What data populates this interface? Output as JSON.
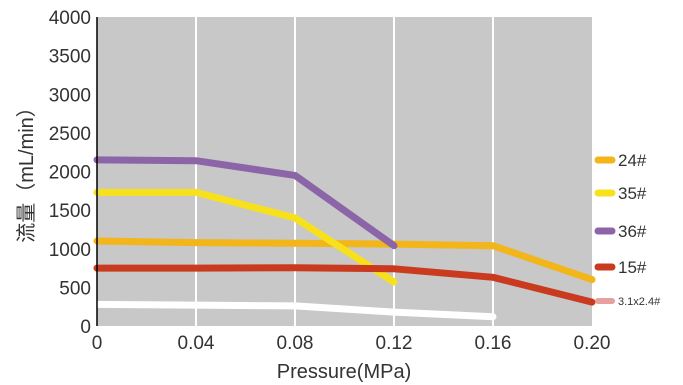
{
  "chart_data": {
    "type": "line",
    "xlabel": "Pressure(MPa)",
    "ylabel": "流量（mL/min）",
    "xlim": [
      0,
      0.2
    ],
    "ylim": [
      0,
      4000
    ],
    "xticks": [
      "0",
      "0.04",
      "0.08",
      "0.12",
      "0.16",
      "0.20"
    ],
    "yticks": [
      "0",
      "500",
      "1000",
      "1500",
      "2000",
      "2500",
      "3000",
      "3500",
      "4000"
    ],
    "grid": "vertical",
    "legend_position": "right",
    "background": "#c8c8c8",
    "series": [
      {
        "name": "24#",
        "color": "#f2b51a",
        "x": [
          0,
          0.04,
          0.08,
          0.12,
          0.16,
          0.2
        ],
        "y": [
          1100,
          1080,
          1070,
          1060,
          1040,
          600
        ]
      },
      {
        "name": "35#",
        "color": "#f7e11c",
        "x": [
          0,
          0.04,
          0.08,
          0.12
        ],
        "y": [
          1730,
          1730,
          1400,
          570
        ]
      },
      {
        "name": "36#",
        "color": "#8c64a8",
        "x": [
          0,
          0.04,
          0.08,
          0.12
        ],
        "y": [
          2150,
          2140,
          1950,
          1040
        ]
      },
      {
        "name": "15#",
        "color": "#c93a1f",
        "x": [
          0,
          0.04,
          0.08,
          0.12,
          0.16,
          0.2
        ],
        "y": [
          750,
          750,
          755,
          740,
          630,
          310
        ]
      },
      {
        "name": "3.1x2.4#",
        "color": "#ffffff",
        "legend_color": "#e6a0a0",
        "x": [
          0,
          0.04,
          0.08,
          0.12,
          0.16
        ],
        "y": [
          280,
          270,
          260,
          180,
          120
        ]
      }
    ]
  }
}
